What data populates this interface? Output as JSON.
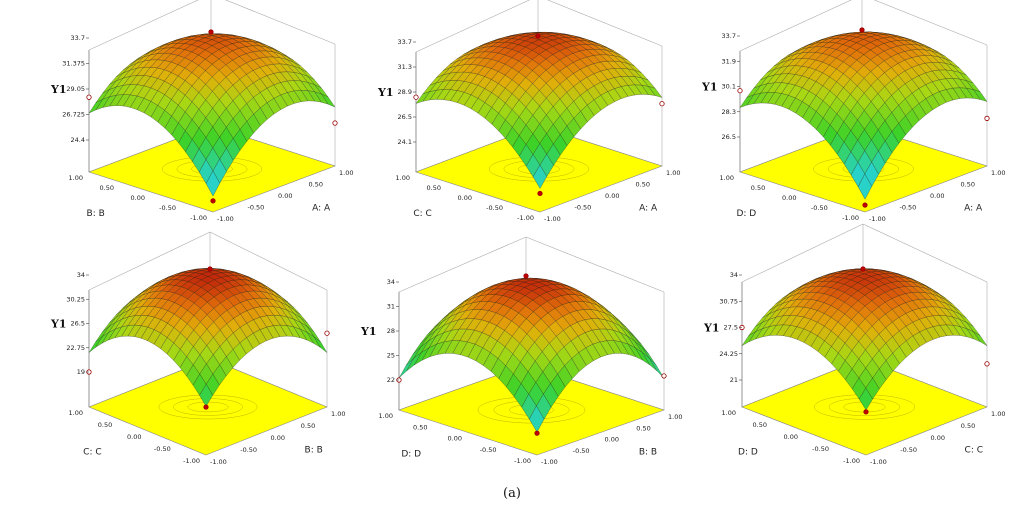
{
  "caption": "(a)",
  "chart_data": [
    {
      "type": "surface",
      "ylabel": "Y1",
      "x_axis_label": "A: A",
      "depth_axis_label": "B: B",
      "x_ticks": [
        "-1.00",
        "-0.50",
        "0.00",
        "0.50",
        "1.00"
      ],
      "depth_ticks": [
        "-1.00",
        "-0.50",
        "0.00",
        "0.50",
        "1.00"
      ],
      "z_ticks": [
        "24.4",
        "26.725",
        "29.05",
        "31.375",
        "33.7"
      ],
      "zlim": [
        24.4,
        33.7
      ],
      "design_points": [
        {
          "x": 0,
          "depth": 0,
          "y": 33.7
        },
        {
          "x": 0,
          "depth": 1,
          "y": 28.3
        },
        {
          "x": 1,
          "depth": 0,
          "y": 25.4
        },
        {
          "x": 0,
          "depth": -1,
          "y": 22.5
        }
      ]
    },
    {
      "type": "surface",
      "ylabel": "Y1",
      "x_axis_label": "A: A",
      "depth_axis_label": "C: C",
      "x_ticks": [
        "-1.00",
        "-0.50",
        "0.00",
        "0.50",
        "1.00"
      ],
      "depth_ticks": [
        "-1.00",
        "-0.50",
        "0.00",
        "0.50",
        "1.00"
      ],
      "z_ticks": [
        "24.1",
        "26.5",
        "28.9",
        "31.3",
        "33.7"
      ],
      "zlim": [
        24.1,
        33.7
      ],
      "design_points": [
        {
          "x": 0,
          "depth": 0,
          "y": 34.1
        },
        {
          "x": 0,
          "depth": 1,
          "y": 28.4
        },
        {
          "x": 1,
          "depth": 0,
          "y": 27.2
        },
        {
          "x": 0,
          "depth": -1,
          "y": 23.0
        }
      ]
    },
    {
      "type": "surface",
      "ylabel": "Y1",
      "x_axis_label": "A: A",
      "depth_axis_label": "D: D",
      "x_ticks": [
        "-1.00",
        "-0.50",
        "0.00",
        "0.50",
        "1.00"
      ],
      "depth_ticks": [
        "-1.00",
        "-0.50",
        "0.00",
        "0.50",
        "1.00"
      ],
      "z_ticks": [
        "26.5",
        "28.3",
        "30.1",
        "31.9",
        "33.7"
      ],
      "zlim": [
        26.5,
        33.7
      ],
      "design_points": [
        {
          "x": 0,
          "depth": 0,
          "y": 33.7
        },
        {
          "x": 0,
          "depth": 1,
          "y": 29.8
        },
        {
          "x": 1,
          "depth": 0,
          "y": 27.4
        },
        {
          "x": 0,
          "depth": -1,
          "y": 24.5
        }
      ]
    },
    {
      "type": "surface",
      "ylabel": "Y1",
      "x_axis_label": "B: B",
      "depth_axis_label": "C: C",
      "x_ticks": [
        "-1.00",
        "-0.50",
        "0.00",
        "0.50",
        "1.00"
      ],
      "depth_ticks": [
        "-1.00",
        "-0.50",
        "0.00",
        "0.50",
        "1.00"
      ],
      "z_ticks": [
        "19",
        "22.75",
        "26.5",
        "30.25",
        "34"
      ],
      "zlim": [
        19,
        34
      ],
      "design_points": [
        {
          "x": 0,
          "depth": 0,
          "y": 34.0
        },
        {
          "x": 0,
          "depth": 1,
          "y": 19.0
        },
        {
          "x": 1,
          "depth": 0,
          "y": 25.0
        },
        {
          "x": 0,
          "depth": -1,
          "y": 21.0
        }
      ]
    },
    {
      "type": "surface",
      "ylabel": "Y1",
      "x_axis_label": "B: B",
      "depth_axis_label": "D: D",
      "x_ticks": [
        "-1.00",
        "-0.50",
        "0.00",
        "0.50",
        "1.00"
      ],
      "depth_ticks": [
        "-1.00",
        "-0.50",
        "0.00",
        "0.50",
        "1.00"
      ],
      "z_ticks": [
        "22",
        "25",
        "28",
        "31",
        "34"
      ],
      "zlim": [
        22,
        34
      ],
      "design_points": [
        {
          "x": 0,
          "depth": 0,
          "y": 34.0
        },
        {
          "x": 0,
          "depth": 1,
          "y": 22.0
        },
        {
          "x": 1,
          "depth": 0,
          "y": 22.5
        },
        {
          "x": 0,
          "depth": -1,
          "y": 21.0
        }
      ]
    },
    {
      "type": "surface",
      "ylabel": "Y1",
      "x_axis_label": "C: C",
      "depth_axis_label": "D: D",
      "x_ticks": [
        "-1.00",
        "-0.50",
        "0.00",
        "0.50",
        "1.00"
      ],
      "depth_ticks": [
        "-1.00",
        "-0.50",
        "0.00",
        "0.50",
        "1.00"
      ],
      "z_ticks": [
        "21",
        "24.25",
        "27.5",
        "30.75",
        "34"
      ],
      "zlim": [
        21,
        34
      ],
      "design_points": [
        {
          "x": 0,
          "depth": 0,
          "y": 34.0
        },
        {
          "x": 0,
          "depth": 1,
          "y": 27.5
        },
        {
          "x": 1,
          "depth": 0,
          "y": 23.0
        },
        {
          "x": 0,
          "depth": -1,
          "y": 23.0
        }
      ]
    }
  ]
}
